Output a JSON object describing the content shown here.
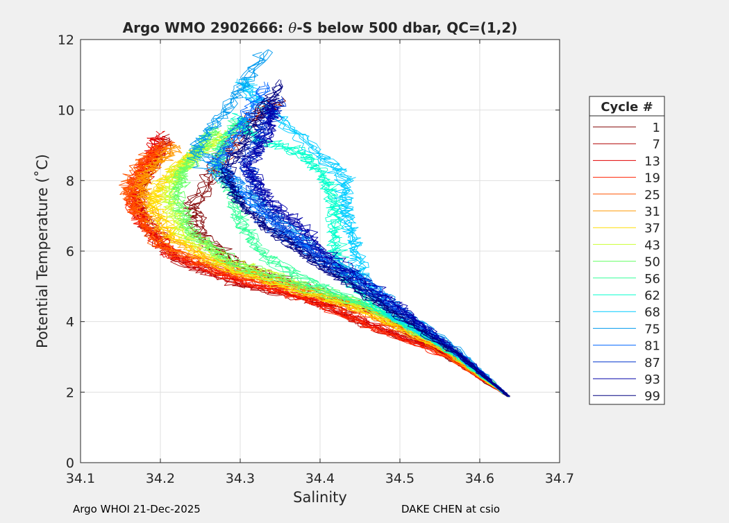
{
  "footer": {
    "left": "Argo WHOI 21-Dec-2025",
    "right": "DAKE CHEN at csio"
  },
  "colors": {
    "figure_bg": "#f0f0f0",
    "axes_bg": "#ffffff",
    "grid": "#dfdfdf",
    "axis": "#262626"
  },
  "chart_data": {
    "type": "line",
    "title_main": "Argo WMO 2902666: ",
    "title_theta": "θ",
    "title_rest": "-S below 500 dbar,  QC=(1,2)",
    "xlabel": "Salinity",
    "ylabel": "Potential Temperature (˚C)",
    "xlim": [
      34.1,
      34.7
    ],
    "ylim": [
      0,
      12
    ],
    "xticks": [
      "34.1",
      "34.2",
      "34.3",
      "34.4",
      "34.5",
      "34.6",
      "34.7"
    ],
    "yticks": [
      "0",
      "2",
      "4",
      "6",
      "8",
      "10",
      "12"
    ],
    "grid": true,
    "legend_title": "Cycle #",
    "legend_position": "right",
    "series": [
      {
        "name": "1",
        "color": "#800000"
      },
      {
        "name": "7",
        "color": "#b00000"
      },
      {
        "name": "13",
        "color": "#e00000"
      },
      {
        "name": "19",
        "color": "#ff2000"
      },
      {
        "name": "25",
        "color": "#ff5500"
      },
      {
        "name": "31",
        "color": "#ff9900"
      },
      {
        "name": "37",
        "color": "#ffdd00"
      },
      {
        "name": "43",
        "color": "#ccff33"
      },
      {
        "name": "50",
        "color": "#66ff66"
      },
      {
        "name": "56",
        "color": "#33ff99"
      },
      {
        "name": "62",
        "color": "#00ffcc"
      },
      {
        "name": "68",
        "color": "#00ccff"
      },
      {
        "name": "75",
        "color": "#0099ee"
      },
      {
        "name": "81",
        "color": "#0066ff"
      },
      {
        "name": "87",
        "color": "#0033cc"
      },
      {
        "name": "93",
        "color": "#0000aa"
      },
      {
        "name": "99",
        "color": "#000080"
      }
    ],
    "profile_groups": [
      {
        "series": "1",
        "points": [
          [
            34.636,
            1.88
          ],
          [
            34.56,
            3.0
          ],
          [
            34.47,
            4.3
          ],
          [
            34.38,
            5.0
          ],
          [
            34.3,
            5.6
          ],
          [
            34.25,
            6.4
          ],
          [
            34.24,
            7.3
          ],
          [
            34.27,
            8.4
          ],
          [
            34.3,
            9.6
          ],
          [
            34.35,
            10.3
          ]
        ]
      },
      {
        "series": "7",
        "points": [
          [
            34.636,
            1.88
          ],
          [
            34.55,
            3.2
          ],
          [
            34.46,
            3.9
          ],
          [
            34.4,
            4.6
          ],
          [
            34.3,
            5.1
          ],
          [
            34.22,
            5.8
          ],
          [
            34.18,
            6.8
          ],
          [
            34.17,
            7.6
          ],
          [
            34.19,
            8.5
          ],
          [
            34.21,
            9.2
          ]
        ]
      },
      {
        "series": "13",
        "points": [
          [
            34.636,
            1.88
          ],
          [
            34.55,
            3.2
          ],
          [
            34.45,
            4.1
          ],
          [
            34.37,
            4.8
          ],
          [
            34.28,
            5.3
          ],
          [
            34.21,
            6.0
          ],
          [
            34.175,
            7.0
          ],
          [
            34.17,
            7.8
          ],
          [
            34.19,
            8.6
          ],
          [
            34.2,
            9.3
          ]
        ]
      },
      {
        "series": "19",
        "points": [
          [
            34.636,
            1.88
          ],
          [
            34.56,
            3.0
          ],
          [
            34.47,
            3.8
          ],
          [
            34.39,
            4.6
          ],
          [
            34.3,
            5.2
          ],
          [
            34.22,
            5.9
          ],
          [
            34.18,
            6.8
          ],
          [
            34.165,
            7.5
          ],
          [
            34.18,
            8.4
          ],
          [
            34.2,
            9.0
          ]
        ]
      },
      {
        "series": "25",
        "points": [
          [
            34.636,
            1.88
          ],
          [
            34.55,
            3.3
          ],
          [
            34.46,
            4.2
          ],
          [
            34.38,
            4.9
          ],
          [
            34.29,
            5.4
          ],
          [
            34.2,
            6.2
          ],
          [
            34.17,
            7.2
          ],
          [
            34.16,
            7.8
          ],
          [
            34.18,
            8.6
          ],
          [
            34.21,
            9.1
          ]
        ]
      },
      {
        "series": "31",
        "points": [
          [
            34.636,
            1.88
          ],
          [
            34.55,
            3.2
          ],
          [
            34.46,
            4.3
          ],
          [
            34.37,
            5.0
          ],
          [
            34.28,
            5.5
          ],
          [
            34.21,
            6.3
          ],
          [
            34.18,
            7.3
          ],
          [
            34.175,
            7.9
          ],
          [
            34.19,
            8.4
          ],
          [
            34.22,
            8.9
          ]
        ]
      },
      {
        "series": "37",
        "points": [
          [
            34.636,
            1.88
          ],
          [
            34.55,
            3.3
          ],
          [
            34.45,
            4.4
          ],
          [
            34.36,
            5.0
          ],
          [
            34.28,
            5.6
          ],
          [
            34.22,
            6.4
          ],
          [
            34.19,
            7.3
          ],
          [
            34.2,
            8.0
          ],
          [
            34.23,
            8.6
          ],
          [
            34.25,
            9.0
          ]
        ]
      },
      {
        "series": "43",
        "points": [
          [
            34.636,
            1.88
          ],
          [
            34.56,
            3.3
          ],
          [
            34.46,
            4.4
          ],
          [
            34.36,
            5.1
          ],
          [
            34.28,
            5.7
          ],
          [
            34.23,
            6.5
          ],
          [
            34.21,
            7.4
          ],
          [
            34.22,
            8.2
          ],
          [
            34.25,
            8.8
          ],
          [
            34.28,
            9.3
          ]
        ]
      },
      {
        "series": "50",
        "points": [
          [
            34.636,
            1.88
          ],
          [
            34.55,
            3.4
          ],
          [
            34.46,
            4.5
          ],
          [
            34.37,
            5.1
          ],
          [
            34.29,
            5.7
          ],
          [
            34.24,
            6.6
          ],
          [
            34.22,
            7.5
          ],
          [
            34.23,
            8.3
          ],
          [
            34.25,
            8.9
          ],
          [
            34.27,
            9.5
          ]
        ]
      },
      {
        "series": "56",
        "points": [
          [
            34.636,
            1.88
          ],
          [
            34.56,
            3.3
          ],
          [
            34.47,
            4.4
          ],
          [
            34.39,
            5.1
          ],
          [
            34.33,
            5.9
          ],
          [
            34.3,
            6.8
          ],
          [
            34.29,
            7.7
          ],
          [
            34.27,
            8.5
          ],
          [
            34.28,
            9.2
          ],
          [
            34.3,
            9.7
          ]
        ]
      },
      {
        "series": "62",
        "points": [
          [
            34.636,
            1.88
          ],
          [
            34.56,
            3.2
          ],
          [
            34.48,
            4.3
          ],
          [
            34.43,
            5.3
          ],
          [
            34.42,
            6.2
          ],
          [
            34.42,
            7.2
          ],
          [
            34.41,
            8.0
          ],
          [
            34.38,
            8.8
          ],
          [
            34.32,
            9.2
          ],
          [
            34.3,
            9.8
          ]
        ]
      },
      {
        "series": "68",
        "points": [
          [
            34.636,
            1.88
          ],
          [
            34.57,
            3.1
          ],
          [
            34.49,
            4.1
          ],
          [
            34.45,
            5.2
          ],
          [
            34.44,
            6.2
          ],
          [
            34.43,
            7.1
          ],
          [
            34.43,
            8.0
          ],
          [
            34.39,
            8.9
          ],
          [
            34.32,
            10.2
          ],
          [
            34.3,
            10.8
          ]
        ]
      },
      {
        "series": "75",
        "points": [
          [
            34.636,
            1.88
          ],
          [
            34.57,
            3.2
          ],
          [
            34.5,
            4.3
          ],
          [
            34.44,
            5.3
          ],
          [
            34.38,
            6.2
          ],
          [
            34.33,
            7.1
          ],
          [
            34.28,
            8.1
          ],
          [
            34.24,
            8.8
          ],
          [
            34.28,
            9.9
          ],
          [
            34.33,
            11.6
          ]
        ]
      },
      {
        "series": "81",
        "points": [
          [
            34.636,
            1.88
          ],
          [
            34.57,
            3.1
          ],
          [
            34.51,
            4.1
          ],
          [
            34.46,
            5.0
          ],
          [
            34.39,
            5.9
          ],
          [
            34.34,
            6.7
          ],
          [
            34.3,
            7.6
          ],
          [
            34.27,
            8.5
          ],
          [
            34.3,
            9.5
          ],
          [
            34.33,
            10.7
          ]
        ]
      },
      {
        "series": "87",
        "points": [
          [
            34.636,
            1.88
          ],
          [
            34.58,
            3.0
          ],
          [
            34.52,
            4.0
          ],
          [
            34.46,
            4.9
          ],
          [
            34.4,
            5.9
          ],
          [
            34.35,
            6.8
          ],
          [
            34.32,
            7.7
          ],
          [
            34.31,
            8.6
          ],
          [
            34.33,
            9.6
          ],
          [
            34.35,
            10.4
          ]
        ]
      },
      {
        "series": "93",
        "points": [
          [
            34.636,
            1.88
          ],
          [
            34.58,
            3.0
          ],
          [
            34.52,
            4.1
          ],
          [
            34.47,
            4.9
          ],
          [
            34.41,
            5.9
          ],
          [
            34.37,
            6.8
          ],
          [
            34.33,
            7.6
          ],
          [
            34.31,
            8.5
          ],
          [
            34.34,
            9.5
          ],
          [
            34.34,
            10.2
          ]
        ]
      },
      {
        "series": "99",
        "points": [
          [
            34.636,
            1.88
          ],
          [
            34.57,
            3.1
          ],
          [
            34.51,
            4.0
          ],
          [
            34.45,
            4.9
          ],
          [
            34.39,
            5.8
          ],
          [
            34.34,
            6.6
          ],
          [
            34.3,
            7.4
          ],
          [
            34.28,
            8.2
          ],
          [
            34.31,
            9.3
          ],
          [
            34.35,
            10.8
          ]
        ]
      }
    ]
  }
}
